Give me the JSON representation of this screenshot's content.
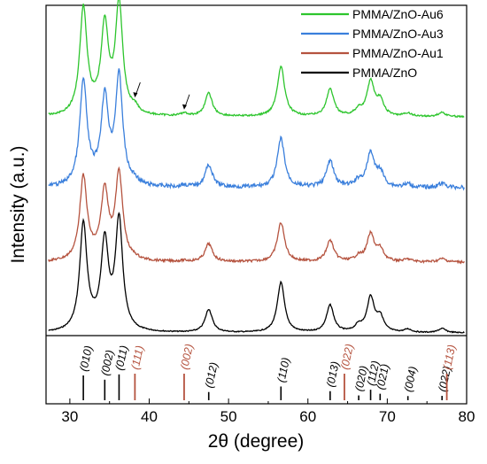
{
  "chart_data": {
    "type": "line",
    "xlabel": "2θ (degree)",
    "ylabel": "Intensity (a.u.)",
    "xlim": [
      27,
      80
    ],
    "xticks": [
      30,
      40,
      50,
      60,
      70,
      80
    ],
    "legend_position": "top-right",
    "series": [
      {
        "name": "PMMA/ZnO-Au6",
        "color": "#2dc52d"
      },
      {
        "name": "PMMA/ZnO-Au3",
        "color": "#3a7fdc"
      },
      {
        "name": "PMMA/ZnO-Au1",
        "color": "#b5533f"
      },
      {
        "name": "PMMA/ZnO",
        "color": "#000000"
      }
    ],
    "zno_peaks": [
      {
        "pos": 31.7,
        "label": "(010)",
        "height": 1.0
      },
      {
        "pos": 34.4,
        "label": "(002)",
        "height": 0.8
      },
      {
        "pos": 36.2,
        "label": "(011)",
        "height": 1.05
      },
      {
        "pos": 47.5,
        "label": "(012)",
        "height": 0.22
      },
      {
        "pos": 56.6,
        "label": "(110)",
        "height": 0.48
      },
      {
        "pos": 62.8,
        "label": "(013)",
        "height": 0.26
      },
      {
        "pos": 66.4,
        "label": "(020)",
        "height": 0.06
      },
      {
        "pos": 67.9,
        "label": "(112)",
        "height": 0.33
      },
      {
        "pos": 69.1,
        "label": "(021)",
        "height": 0.14
      },
      {
        "pos": 72.6,
        "label": "(004)",
        "height": 0.03
      },
      {
        "pos": 76.9,
        "label": "(022)",
        "height": 0.04
      }
    ],
    "au_peaks": [
      {
        "pos": 38.2,
        "label": "(111)"
      },
      {
        "pos": 44.4,
        "label": "(002)"
      },
      {
        "pos": 64.6,
        "label": "(022)"
      },
      {
        "pos": 77.5,
        "label": "(113)"
      }
    ],
    "reference_colors": {
      "zno": "#000000",
      "au": "#b5533f"
    },
    "arrows_at": [
      38.2,
      44.4
    ]
  }
}
